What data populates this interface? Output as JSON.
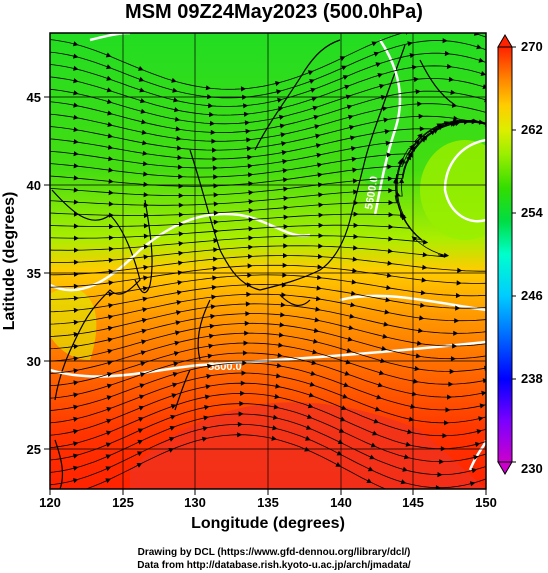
{
  "title": "MSM 09Z24May2023 (500.0hPa)",
  "x_axis": {
    "label": "Longitude (degrees)",
    "ticks": [
      "120",
      "125",
      "130",
      "135",
      "140",
      "145",
      "150"
    ],
    "range": [
      120,
      150
    ]
  },
  "y_axis": {
    "label": "Latitude  (degrees)",
    "ticks": [
      "25",
      "30",
      "35",
      "40",
      "45"
    ],
    "range": [
      22.4,
      47.6
    ]
  },
  "colorbar": {
    "ticks": [
      "270",
      "262",
      "254",
      "246",
      "238",
      "230"
    ],
    "range": [
      230,
      270
    ],
    "colors": [
      "#cc00cc",
      "#7a00ff",
      "#0000ff",
      "#0066ff",
      "#00ccff",
      "#00ffcc",
      "#00ff66",
      "#00dd22",
      "#33dd00",
      "#99ee00",
      "#ddee00",
      "#ffcc00",
      "#ff8800",
      "#ff4400",
      "#ff2200"
    ]
  },
  "contours": [
    {
      "label": "5800.0",
      "color": "#ffffff"
    },
    {
      "label": "5600.0",
      "color": "#ffffff"
    }
  ],
  "credits": {
    "line1": "Drawing by DCL (https://www.gfd-dennou.org/library/dcl/)",
    "line2": "Data from http://database.rish.kyoto-u.ac.jp/arch/jmadata/"
  }
}
